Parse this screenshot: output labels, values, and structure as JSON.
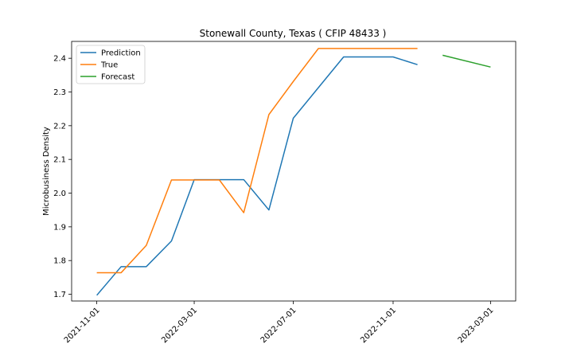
{
  "chart_data": {
    "type": "line",
    "title": "Stonewall County, Texas ( CFIP 48433 )",
    "xlabel": "",
    "ylabel": "Microbusiness Density",
    "x_ticks": [
      "2021-11-01",
      "2022-03-01",
      "2022-07-01",
      "2022-11-01",
      "2023-03-01"
    ],
    "y_ticks": [
      1.7,
      1.8,
      1.9,
      2.0,
      2.1,
      2.2,
      2.3,
      2.4
    ],
    "xlim": [
      "2021-10-01",
      "2023-04-01"
    ],
    "ylim": [
      1.68,
      2.45
    ],
    "grid": false,
    "legend_position": "upper left",
    "series": [
      {
        "name": "Prediction",
        "color": "#1f77b4",
        "x": [
          "2021-11-01",
          "2021-12-01",
          "2022-01-01",
          "2022-02-01",
          "2022-03-01",
          "2022-04-01",
          "2022-05-01",
          "2022-06-01",
          "2022-07-01",
          "2022-08-01",
          "2022-09-01",
          "2022-10-01",
          "2022-11-01",
          "2022-12-01"
        ],
        "y": [
          1.697,
          1.782,
          1.782,
          1.858,
          2.04,
          2.04,
          2.04,
          1.95,
          2.222,
          2.313,
          2.404,
          2.404,
          2.404,
          2.381
        ]
      },
      {
        "name": "True",
        "color": "#ff7f0e",
        "x": [
          "2021-11-01",
          "2021-12-01",
          "2022-01-01",
          "2022-02-01",
          "2022-03-01",
          "2022-04-01",
          "2022-05-01",
          "2022-06-01",
          "2022-07-01",
          "2022-08-01",
          "2022-09-01",
          "2022-10-01",
          "2022-11-01",
          "2022-12-01"
        ],
        "y": [
          1.764,
          1.764,
          1.845,
          2.039,
          2.039,
          2.039,
          1.942,
          2.233,
          2.331,
          2.429,
          2.429,
          2.429,
          2.429,
          2.429
        ]
      },
      {
        "name": "Forecast",
        "color": "#2ca02c",
        "x": [
          "2023-01-01",
          "2023-03-01"
        ],
        "y": [
          2.409,
          2.374
        ]
      }
    ]
  }
}
